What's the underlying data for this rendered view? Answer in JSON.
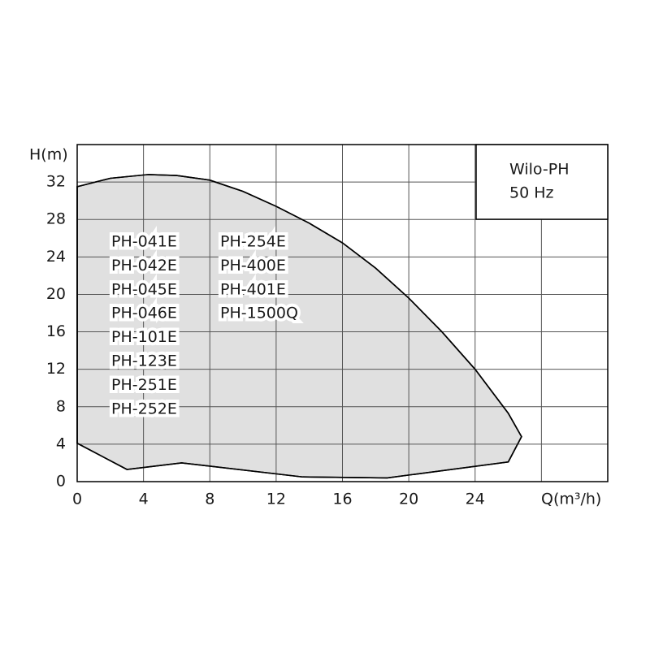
{
  "chart_data": {
    "type": "area",
    "x_label": "Q(m³/h)",
    "y_label": "H(m)",
    "box_lines": [
      "Wilo-PH",
      "50 Hz"
    ],
    "models": [
      [
        "PH-041E",
        "PH-042E",
        "PH-045E",
        "PH-046E",
        "PH-101E",
        "PH-123E",
        "PH-251E",
        "PH-252E"
      ],
      [
        "PH-254E",
        "PH-400E",
        "PH-401E",
        "PH-1500Q"
      ]
    ],
    "x": [
      0,
      2,
      4.3,
      6,
      8,
      10,
      12,
      14,
      16,
      18,
      20,
      22,
      24,
      26,
      26.8,
      26,
      18.7,
      13.6,
      6.3,
      3,
      0
    ],
    "values": [
      31.5,
      32.4,
      32.8,
      32.7,
      32.2,
      31.0,
      29.4,
      27.6,
      25.5,
      22.8,
      19.6,
      16.0,
      12.0,
      7.3,
      4.8,
      2.1,
      0.4,
      0.5,
      2.0,
      1.3,
      4.1
    ],
    "color": "#e0e0e0",
    "xlim": [
      0,
      32
    ],
    "ylim": [
      0,
      36
    ],
    "xticks": [
      0,
      4,
      8,
      12,
      16,
      20,
      24,
      {
        "value": 28,
        "label": null
      }
    ],
    "yticks": [
      0,
      4,
      8,
      12,
      16,
      20,
      24,
      28,
      32
    ],
    "grid": true
  }
}
